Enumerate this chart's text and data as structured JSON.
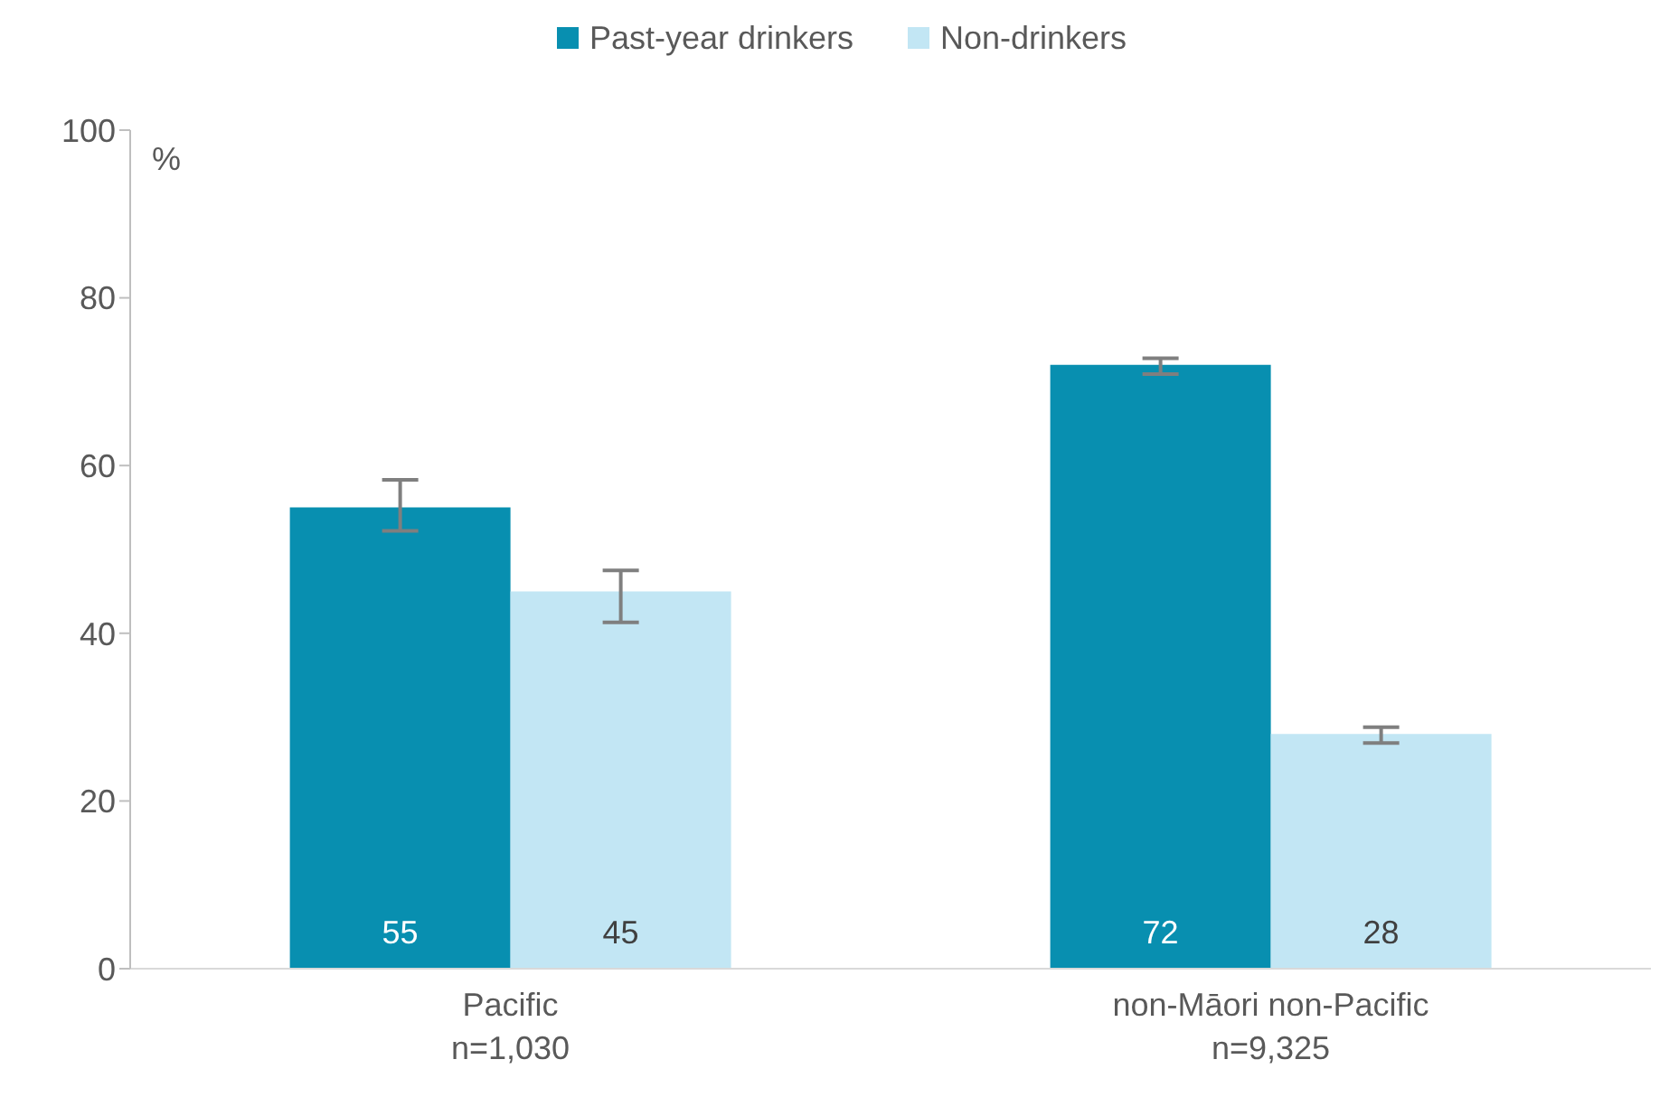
{
  "chart_data": {
    "type": "bar",
    "categories": [
      "Pacific\nn=1,030",
      "non-Māori non-Pacific\nn=9,325"
    ],
    "ylabel": "%",
    "ylim": [
      0,
      100
    ],
    "yticks": [
      0,
      20,
      40,
      60,
      80,
      100
    ],
    "grid": false,
    "legend": "top",
    "data_labels": true,
    "series": [
      {
        "name": "Past-year drinkers",
        "color": "#088fb0",
        "values": [
          55,
          72
        ],
        "errors": [
          [
            52.2,
            58.3
          ],
          [
            70.9,
            72.8
          ]
        ]
      },
      {
        "name": "Non-drinkers",
        "color": "#c2e6f4",
        "values": [
          45,
          28
        ],
        "errors": [
          [
            41.3,
            47.5
          ],
          [
            26.9,
            28.8
          ]
        ]
      }
    ]
  }
}
